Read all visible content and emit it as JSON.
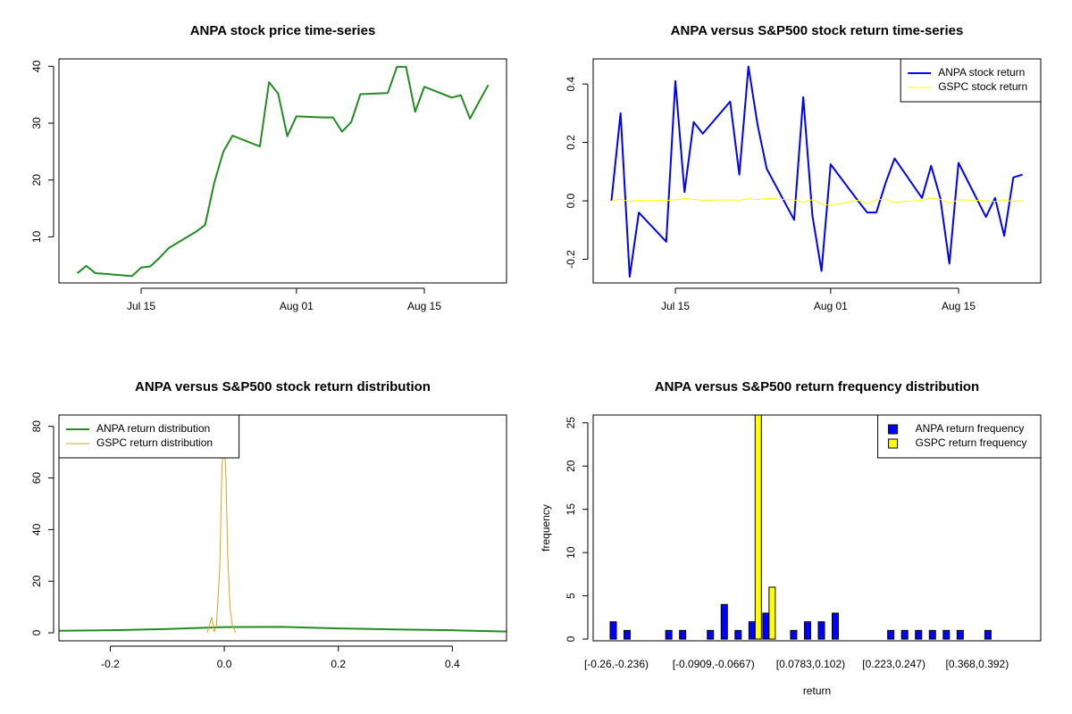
{
  "chart_data": [
    {
      "type": "line",
      "title": "ANPA stock price time-series",
      "x": [
        "Jul 08",
        "Jul 09",
        "Jul 10",
        "Jul 11",
        "Jul 14",
        "Jul 15",
        "Jul 16",
        "Jul 17",
        "Jul 18",
        "Jul 21",
        "Jul 22",
        "Jul 23",
        "Jul 24",
        "Jul 25",
        "Jul 28",
        "Jul 29",
        "Jul 30",
        "Jul 31",
        "Aug 01",
        "Aug 04",
        "Aug 05",
        "Aug 06",
        "Aug 07",
        "Aug 08",
        "Aug 11",
        "Aug 12",
        "Aug 13",
        "Aug 14",
        "Aug 15",
        "Aug 18",
        "Aug 19",
        "Aug 20",
        "Aug 21",
        "Aug 22"
      ],
      "values": [
        3.6,
        4.9,
        3.6,
        3.5,
        3.1,
        4.6,
        4.8,
        6.3,
        8.0,
        10.9,
        12.1,
        19.5,
        25.0,
        27.8,
        25.9,
        37.2,
        35.2,
        27.7,
        31.2,
        31.0,
        31.0,
        28.5,
        30.2,
        35.1,
        35.3,
        39.9,
        39.9,
        32.0,
        36.4,
        34.5,
        34.9,
        30.8,
        33.8,
        36.7
      ],
      "color": "#228b22",
      "xlim": [
        "Jul 06",
        "Aug 24"
      ],
      "xticks": [
        "Jul 15",
        "Aug 01",
        "Aug 15"
      ],
      "ylim": [
        1.9,
        41.3
      ],
      "yticks": [
        10,
        20,
        30,
        40
      ]
    },
    {
      "type": "line",
      "title": "ANPA versus S&P500 stock return time-series",
      "x": [
        "Jul 08",
        "Jul 09",
        "Jul 10",
        "Jul 11",
        "Jul 14",
        "Jul 15",
        "Jul 16",
        "Jul 17",
        "Jul 18",
        "Jul 21",
        "Jul 22",
        "Jul 23",
        "Jul 24",
        "Jul 25",
        "Jul 28",
        "Jul 29",
        "Jul 30",
        "Jul 31",
        "Aug 01",
        "Aug 04",
        "Aug 05",
        "Aug 06",
        "Aug 07",
        "Aug 08",
        "Aug 11",
        "Aug 12",
        "Aug 13",
        "Aug 14",
        "Aug 15",
        "Aug 18",
        "Aug 19",
        "Aug 20",
        "Aug 21",
        "Aug 22"
      ],
      "series": [
        {
          "name": "ANPA stock return",
          "color": "#0000ff",
          "values": [
            0,
            0.3,
            -0.26,
            -0.04,
            -0.14,
            0.41,
            0.03,
            0.27,
            0.23,
            0.34,
            0.09,
            0.46,
            0.26,
            0.11,
            -0.065,
            0.355,
            -0.05,
            -0.24,
            0.125,
            0,
            -0.04,
            -0.04,
            0.06,
            0.145,
            0.01,
            0.12,
            0.01,
            -0.215,
            0.13,
            -0.055,
            0.01,
            -0.12,
            0.08,
            0.09
          ]
        },
        {
          "name": "GSPC stock return",
          "color": "#ffff00",
          "values": [
            0,
            0.006,
            -0.003,
            0.002,
            0.001,
            0.004,
            0.008,
            0.005,
            0.002,
            0.003,
            0.002,
            0.007,
            0.004,
            0.008,
            0.003,
            -0.005,
            0.004,
            -0.01,
            -0.016,
            0.002,
            -0.01,
            0.004,
            0.006,
            -0.005,
            0.002,
            0.01,
            0.005,
            -0.008,
            0.004,
            0,
            -0.002,
            0.004,
            -0.003,
            0.002
          ]
        }
      ],
      "legend": "top-right",
      "xlim": [
        "Jul 06",
        "Aug 24"
      ],
      "xticks": [
        "Jul 15",
        "Aug 01",
        "Aug 15"
      ],
      "ylim": [
        -0.281,
        0.486
      ],
      "yticks": [
        -0.2,
        {
          "value": 0,
          "label": "0.0"
        },
        0.2,
        0.4
      ]
    },
    {
      "type": "line",
      "title": "ANPA versus S&P500 stock return distribution",
      "series": [
        {
          "name": "ANPA return distribution",
          "color": "#228b22",
          "x": [
            -0.29,
            -0.2,
            -0.1,
            0,
            0.1,
            0.2,
            0.3,
            0.4,
            0.495
          ],
          "values": [
            0.8,
            1.0,
            1.5,
            2.2,
            2.3,
            1.7,
            1.3,
            1.0,
            0.5
          ]
        },
        {
          "name": "GSPC return distribution",
          "color": "#daa520",
          "x": [
            -0.03,
            -0.022,
            -0.018,
            -0.014,
            -0.008,
            -0.004,
            0,
            0.003,
            0.006,
            0.01,
            0.014,
            0.02
          ],
          "values": [
            0,
            6,
            0.5,
            2,
            25,
            65,
            74,
            60,
            30,
            10,
            3,
            0
          ]
        }
      ],
      "legend": "top-left",
      "xlim": [
        -0.29,
        0.495
      ],
      "xticks": [
        -0.2,
        {
          "value": 0,
          "label": "0.0"
        },
        0.2,
        0.4
      ],
      "ylim": [
        -3.1,
        84.4
      ],
      "yticks": [
        0,
        20,
        40,
        60,
        80
      ]
    },
    {
      "type": "bar",
      "title": "ANPA versus S&P500 return frequency distribution",
      "x_label": "return",
      "y_label": "frequency",
      "categories": [
        "[-0.26,-0.236)",
        null,
        null,
        null,
        null,
        null,
        null,
        "[-0.0909,-0.0667)",
        null,
        null,
        null,
        null,
        null,
        null,
        "[0.0783,0.102)",
        null,
        null,
        null,
        null,
        null,
        "[0.223,0.247)",
        null,
        null,
        null,
        null,
        null,
        "[0.368,0.392)",
        null,
        null,
        null
      ],
      "series": [
        {
          "name": "ANPA return frequency",
          "color": "#0000ff",
          "values": [
            2,
            1,
            0,
            0,
            1,
            1,
            0,
            1,
            4,
            1,
            2,
            3,
            0,
            1,
            2,
            2,
            3,
            0,
            0,
            0,
            1,
            1,
            1,
            1,
            1,
            1,
            0,
            1,
            0,
            0
          ]
        },
        {
          "name": "GSPC return frequency",
          "color": "#ffff00",
          "values": [
            0,
            0,
            0,
            0,
            0,
            0,
            0,
            0,
            0,
            0,
            28,
            6,
            0,
            0,
            0,
            0,
            0,
            0,
            0,
            0,
            0,
            0,
            0,
            0,
            0,
            0,
            0,
            0,
            0,
            0
          ]
        }
      ],
      "legend": "top-right",
      "ylim": [
        -0.2,
        25.9
      ],
      "yticks": [
        0,
        5,
        10,
        15,
        20,
        25
      ]
    }
  ]
}
